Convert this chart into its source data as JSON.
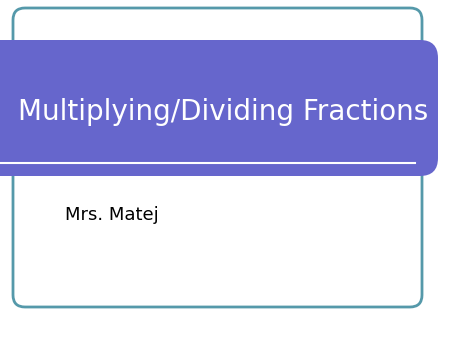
{
  "title_text": "Multiplying/Dividing Fractions",
  "subtitle_text": "Mrs. Matej",
  "bg_color": "#ffffff",
  "banner_color": "#6666cc",
  "border_color": "#5599aa",
  "title_color": "#ffffff",
  "subtitle_color": "#000000",
  "title_fontsize": 20,
  "subtitle_fontsize": 13,
  "fig_width": 4.5,
  "fig_height": 3.38
}
